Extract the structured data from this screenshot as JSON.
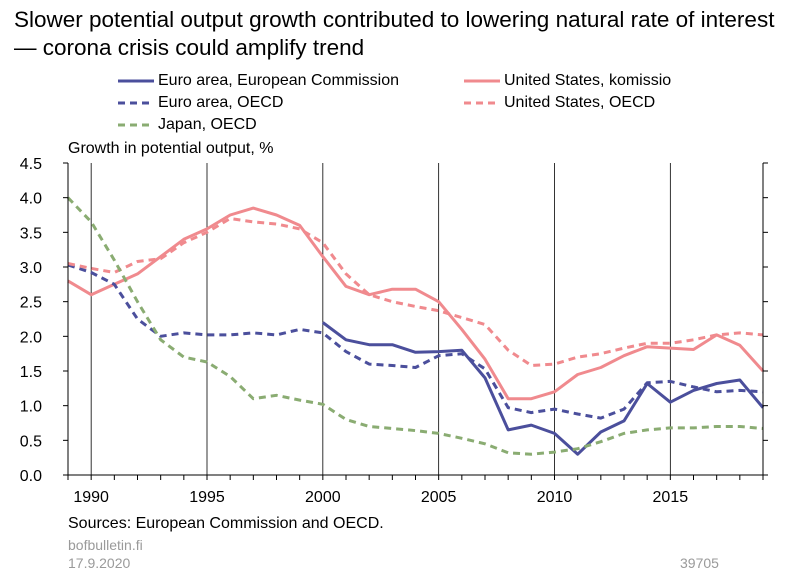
{
  "title": "Slower potential output growth contributed to lowering natural rate of interest — corona crisis could amplify trend",
  "colors": {
    "euro": "#4b4f9c",
    "us": "#f08a8e",
    "japan": "#8aac72",
    "grid": "#000000",
    "footer": "#9a9a9a"
  },
  "footer": {
    "source": "Sources: European Commission and OECD.",
    "site": "bofbulletin.fi",
    "date": "17.9.2020",
    "code": "39705"
  },
  "chart_data": {
    "type": "line",
    "ylabel": "Growth in potential output, %",
    "ylim": [
      0,
      4.5
    ],
    "yticks": [
      "4.5",
      "4.0",
      "3.5",
      "3.0",
      "2.5",
      "2.0",
      "1.5",
      "1.0",
      "0.5",
      "0.0"
    ],
    "xlim": [
      1989,
      2019
    ],
    "xticks": [
      "1990",
      "1995",
      "2000",
      "2005",
      "2010",
      "2015"
    ],
    "grid": "vertical at 1990, 1995, 2000, 2005, 2010, 2015",
    "legend_position": "top",
    "series": [
      {
        "name": "Euro area, European Commission",
        "style": "solid",
        "color_key": "euro",
        "x": [
          2000,
          2001,
          2002,
          2003,
          2004,
          2005,
          2006,
          2007,
          2008,
          2009,
          2010,
          2011,
          2012,
          2013,
          2014,
          2015,
          2016,
          2017,
          2018,
          2019
        ],
        "y": [
          2.2,
          1.95,
          1.88,
          1.88,
          1.77,
          1.78,
          1.8,
          1.4,
          0.65,
          0.72,
          0.6,
          0.3,
          0.62,
          0.78,
          1.32,
          1.05,
          1.22,
          1.32,
          1.37,
          0.97
        ]
      },
      {
        "name": "United States, komissio",
        "style": "solid",
        "color_key": "us",
        "x": [
          1989,
          1990,
          1991,
          1992,
          1993,
          1994,
          1995,
          1996,
          1997,
          1998,
          1999,
          2000,
          2001,
          2002,
          2003,
          2004,
          2005,
          2006,
          2007,
          2008,
          2009,
          2010,
          2011,
          2012,
          2013,
          2014,
          2015,
          2016,
          2017,
          2018,
          2019
        ],
        "y": [
          2.8,
          2.6,
          2.75,
          2.9,
          3.15,
          3.4,
          3.55,
          3.75,
          3.85,
          3.75,
          3.6,
          3.15,
          2.72,
          2.6,
          2.68,
          2.68,
          2.5,
          2.1,
          1.67,
          1.1,
          1.1,
          1.2,
          1.45,
          1.55,
          1.72,
          1.85,
          1.83,
          1.81,
          2.02,
          1.87,
          1.5
        ]
      },
      {
        "name": "Euro area, OECD",
        "style": "dashed",
        "color_key": "euro",
        "x": [
          1989,
          1990,
          1991,
          1992,
          1993,
          1994,
          1995,
          1996,
          1997,
          1998,
          1999,
          2000,
          2001,
          2002,
          2003,
          2004,
          2005,
          2006,
          2007,
          2008,
          2009,
          2010,
          2011,
          2012,
          2013,
          2014,
          2015,
          2016,
          2017,
          2018,
          2019
        ],
        "y": [
          3.03,
          2.92,
          2.75,
          2.25,
          2.0,
          2.05,
          2.02,
          2.02,
          2.05,
          2.02,
          2.1,
          2.05,
          1.78,
          1.6,
          1.58,
          1.55,
          1.72,
          1.75,
          1.53,
          0.97,
          0.9,
          0.95,
          0.88,
          0.82,
          0.95,
          1.33,
          1.35,
          1.27,
          1.2,
          1.22,
          1.2
        ]
      },
      {
        "name": "United States, OECD",
        "style": "dashed",
        "color_key": "us",
        "x": [
          1989,
          1990,
          1991,
          1992,
          1993,
          1994,
          1995,
          1996,
          1997,
          1998,
          1999,
          2000,
          2001,
          2002,
          2003,
          2004,
          2005,
          2006,
          2007,
          2008,
          2009,
          2010,
          2011,
          2012,
          2013,
          2014,
          2015,
          2016,
          2017,
          2018,
          2019
        ],
        "y": [
          3.05,
          2.98,
          2.92,
          3.08,
          3.12,
          3.35,
          3.5,
          3.7,
          3.65,
          3.62,
          3.55,
          3.35,
          2.9,
          2.6,
          2.5,
          2.43,
          2.37,
          2.27,
          2.17,
          1.8,
          1.58,
          1.6,
          1.7,
          1.75,
          1.83,
          1.9,
          1.9,
          1.95,
          2.02,
          2.05,
          2.02
        ]
      },
      {
        "name": "Japan, OECD",
        "style": "dashed",
        "color_key": "japan",
        "x": [
          1989,
          1990,
          1991,
          1992,
          1993,
          1994,
          1995,
          1996,
          1997,
          1998,
          1999,
          2000,
          2001,
          2002,
          2003,
          2004,
          2005,
          2006,
          2007,
          2008,
          2009,
          2010,
          2011,
          2012,
          2013,
          2014,
          2015,
          2016,
          2017,
          2018,
          2019
        ],
        "y": [
          4.0,
          3.65,
          3.1,
          2.5,
          1.95,
          1.7,
          1.63,
          1.42,
          1.1,
          1.15,
          1.08,
          1.02,
          0.8,
          0.7,
          0.67,
          0.64,
          0.6,
          0.53,
          0.45,
          0.32,
          0.3,
          0.33,
          0.38,
          0.48,
          0.6,
          0.65,
          0.68,
          0.68,
          0.7,
          0.7,
          0.67
        ]
      }
    ]
  }
}
